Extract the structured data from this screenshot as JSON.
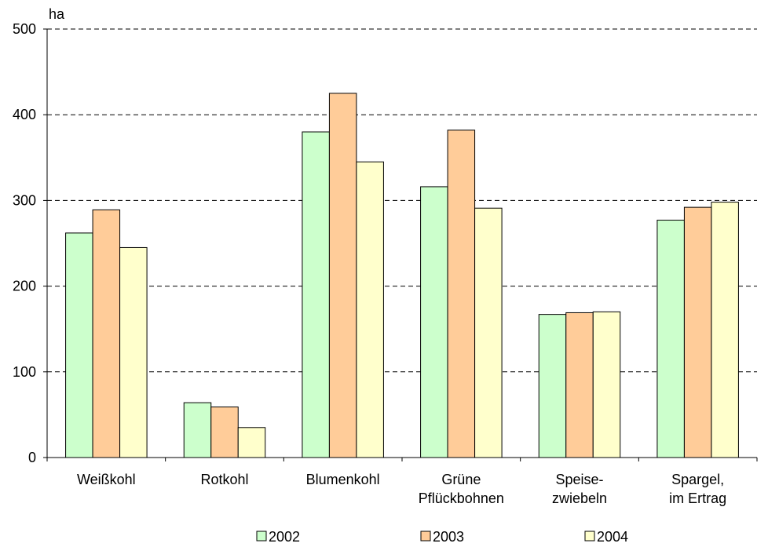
{
  "chart_data": {
    "type": "bar",
    "ylabel": "ha",
    "ylim": [
      0,
      500
    ],
    "yticks": [
      "0",
      "100",
      "200",
      "300",
      "400",
      "500"
    ],
    "grid": "horizontal dashed",
    "legend_position": "bottom",
    "categories": [
      [
        "Weißkohl"
      ],
      [
        "Rotkohl"
      ],
      [
        "Blumenkohl"
      ],
      [
        "Grüne",
        "Pflückbohnen"
      ],
      [
        "Speise-",
        "zwiebeln"
      ],
      [
        "Spargel,",
        "im Ertrag"
      ]
    ],
    "series": [
      {
        "name": "2002",
        "color": "#ccffcc",
        "values": [
          262,
          64,
          380,
          316,
          167,
          277
        ]
      },
      {
        "name": "2003",
        "color": "#ffcc99",
        "values": [
          289,
          59,
          425,
          382,
          169,
          292
        ]
      },
      {
        "name": "2004",
        "color": "#ffffcc",
        "values": [
          245,
          35,
          345,
          291,
          170,
          298
        ]
      }
    ]
  }
}
